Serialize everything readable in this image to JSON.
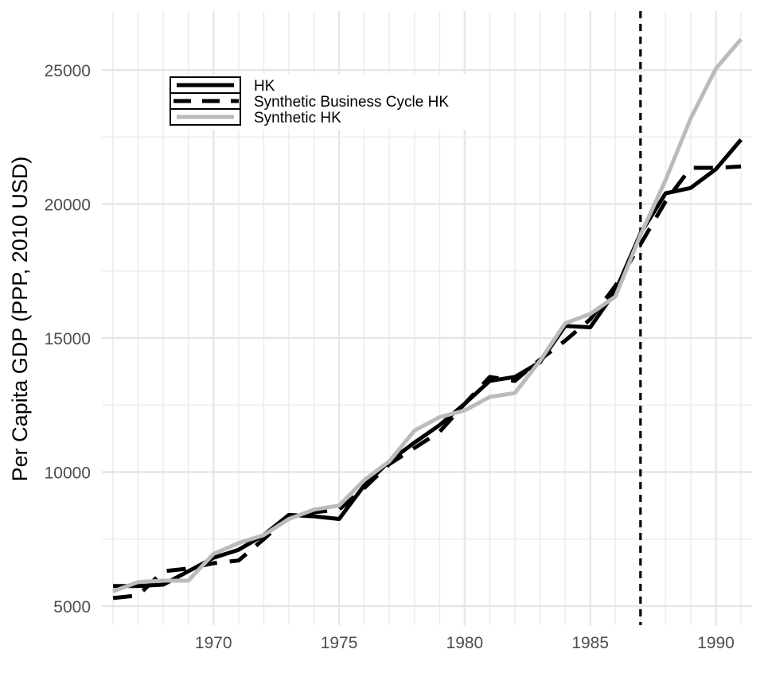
{
  "chart_data": {
    "type": "line",
    "title": "",
    "xlabel": "",
    "ylabel": "Per Capita GDP (PPP, 2010 USD)",
    "xlim": [
      1966,
      1991
    ],
    "ylim": [
      5000,
      26000
    ],
    "x_ticks": [
      "1970",
      "1975",
      "1980",
      "1985",
      "1990"
    ],
    "y_ticks": [
      "5000",
      "10000",
      "15000",
      "20000",
      "25000"
    ],
    "grid": true,
    "legend_position": "top-left",
    "reference_line": {
      "x": 1987,
      "style": "dashed",
      "color": "#000000"
    },
    "x": [
      1966,
      1967,
      1968,
      1969,
      1970,
      1971,
      1972,
      1973,
      1974,
      1975,
      1976,
      1977,
      1978,
      1979,
      1980,
      1981,
      1982,
      1983,
      1984,
      1985,
      1986,
      1987,
      1988,
      1989,
      1990,
      1991
    ],
    "series": [
      {
        "name": "HK",
        "color": "#000000",
        "dash": "solid",
        "values": [
          5750,
          5750,
          5800,
          6300,
          6800,
          7100,
          7650,
          8400,
          8350,
          8250,
          9500,
          10400,
          11100,
          11750,
          12550,
          13400,
          13550,
          14100,
          15450,
          15400,
          16750,
          18900,
          20400,
          20600,
          21300,
          22400
        ]
      },
      {
        "name": "Synthetic Business Cycle HK",
        "color": "#000000",
        "dash": "dashed",
        "values": [
          5300,
          5400,
          6300,
          6400,
          6600,
          6700,
          7500,
          8350,
          8500,
          8600,
          9400,
          10300,
          10900,
          11500,
          12550,
          13550,
          13400,
          14200,
          14900,
          15700,
          16950,
          18500,
          20100,
          21350,
          21350,
          21400
        ]
      },
      {
        "name": "Synthetic HK",
        "color": "#bbbbbb",
        "dash": "solid",
        "values": [
          5550,
          5900,
          5950,
          5950,
          6950,
          7350,
          7650,
          8250,
          8600,
          8750,
          9700,
          10400,
          11550,
          12050,
          12300,
          12800,
          12950,
          14150,
          15550,
          15900,
          16550,
          18850,
          20900,
          23200,
          25050,
          26150
        ]
      }
    ]
  }
}
